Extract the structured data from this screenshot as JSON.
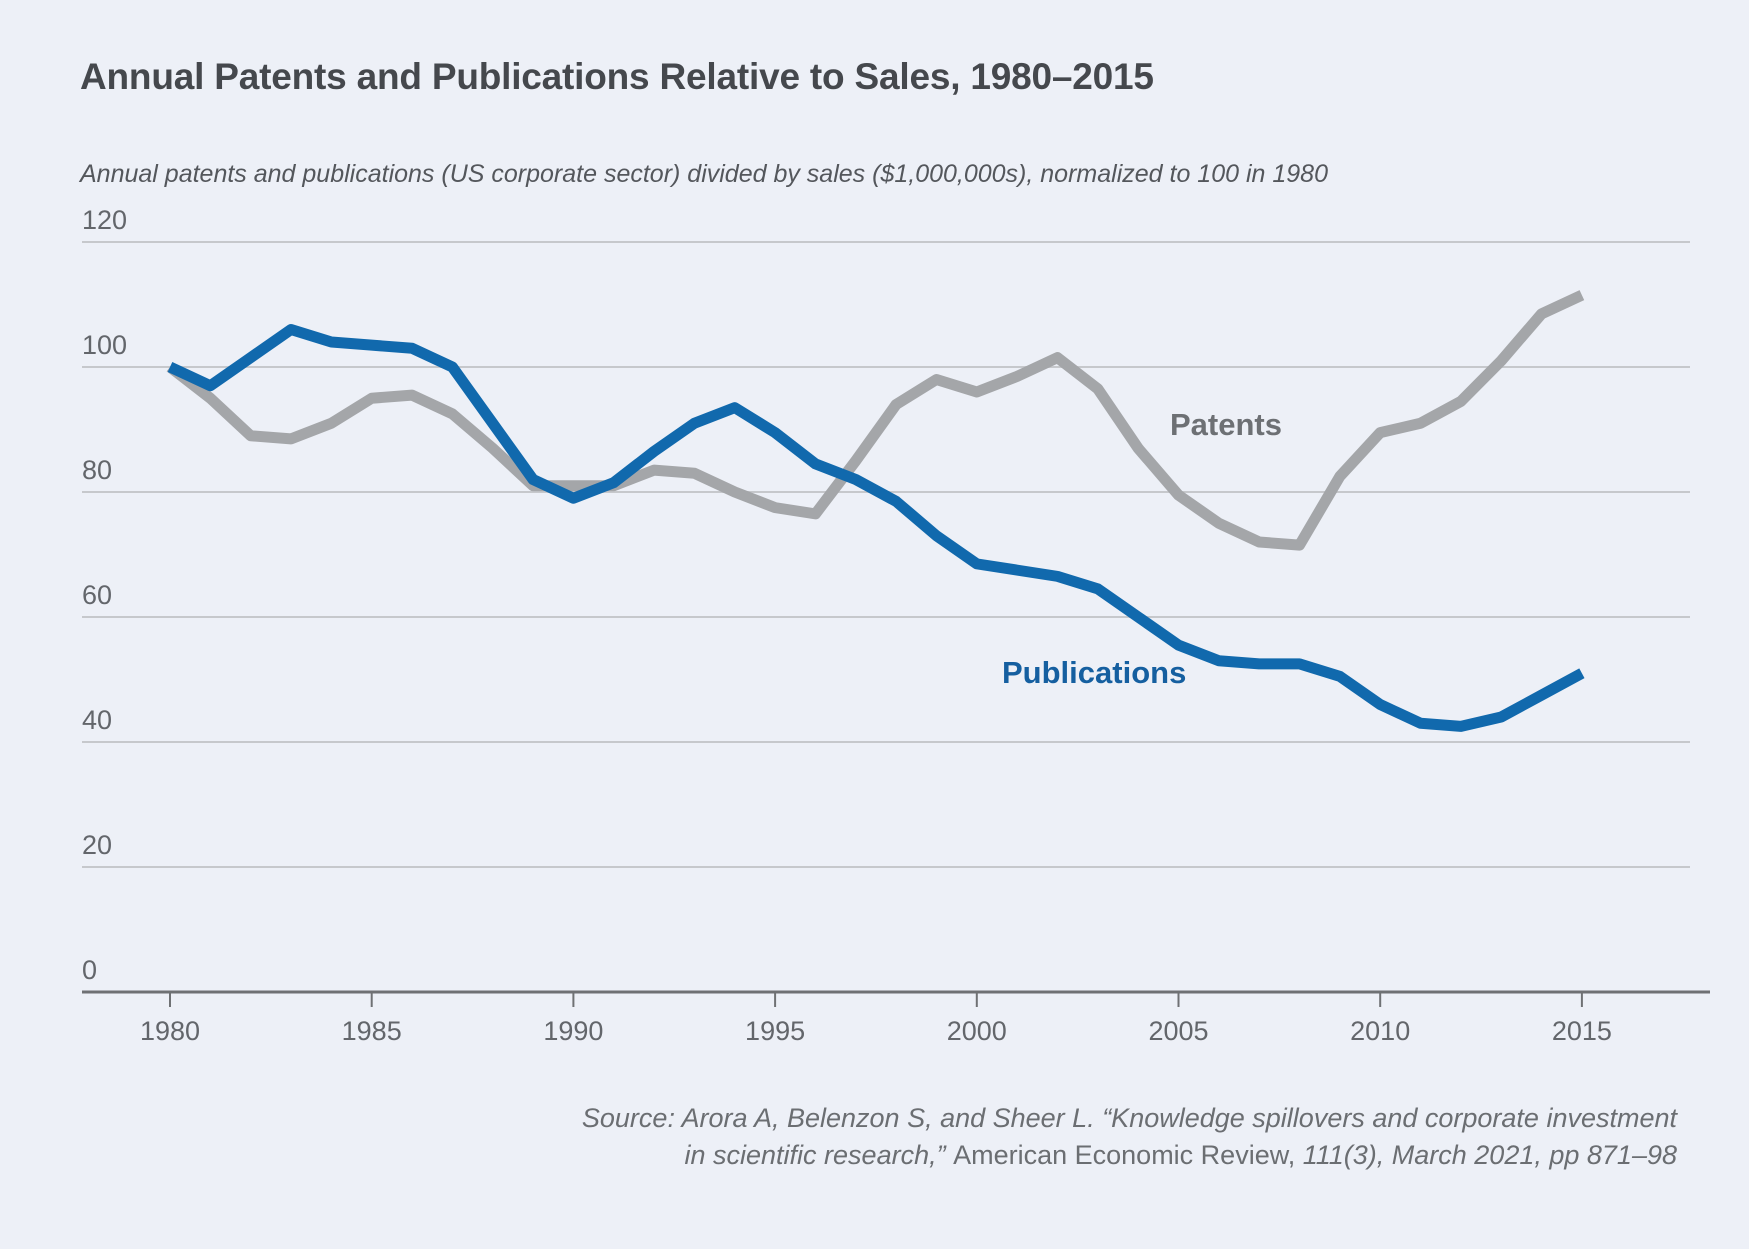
{
  "page": {
    "background": "#edf0f7"
  },
  "header": {
    "title": "Annual Patents and Publications Relative to Sales, 1980–2015",
    "subtitle": "Annual patents and publications (US corporate sector) divided by sales ($1,000,000s), normalized to 100 in 1980"
  },
  "chart_data": {
    "type": "line",
    "title": "Annual Patents and Publications Relative to Sales, 1980–2015",
    "x": [
      1980,
      1981,
      1982,
      1983,
      1984,
      1985,
      1986,
      1987,
      1988,
      1989,
      1990,
      1991,
      1992,
      1993,
      1994,
      1995,
      1996,
      1997,
      1998,
      1999,
      2000,
      2001,
      2002,
      2003,
      2004,
      2005,
      2006,
      2007,
      2008,
      2009,
      2010,
      2011,
      2012,
      2013,
      2014,
      2015
    ],
    "x_tick_labels": [
      "1980",
      "1985",
      "1990",
      "1995",
      "2000",
      "2005",
      "2010",
      "2015"
    ],
    "y_ticks": [
      0,
      20,
      40,
      60,
      80,
      100,
      120
    ],
    "ylim": [
      0,
      120
    ],
    "grid": "horizontal",
    "legend_position": "inline-labels",
    "series": [
      {
        "name": "Patents",
        "color": "#a4a6a9",
        "label_color": "#6d7074",
        "values": [
          100,
          95,
          89,
          88.5,
          91,
          95,
          95.5,
          92.5,
          87,
          81,
          81,
          81,
          83.5,
          83,
          80,
          77.5,
          76.5,
          85,
          94,
          98,
          96,
          98.5,
          101.5,
          96.5,
          87,
          79.5,
          75,
          72,
          71.5,
          82.5,
          89.5,
          91,
          94.5,
          101,
          108.5,
          111.5
        ]
      },
      {
        "name": "Publications",
        "color": "#1169ad",
        "label_color": "#155fa0",
        "values": [
          100,
          97,
          101.5,
          106,
          104,
          103.5,
          103,
          100,
          91,
          82,
          79,
          81.5,
          86.5,
          91,
          93.5,
          89.5,
          84.5,
          82,
          78.5,
          73,
          68.5,
          67.5,
          66.5,
          64.5,
          60,
          55.5,
          53,
          52.5,
          52.5,
          50.5,
          46,
          43,
          42.5,
          44,
          47.5,
          51
        ]
      }
    ]
  },
  "source": {
    "line1": "Source: Arora A,  Belenzon S, and Sheer L. “Knowledge spillovers and corporate investment",
    "line2_italic_pre": "in scientific research,” ",
    "line2_roman": "American Economic Review,",
    "line2_italic_post": " 111(3), March 2021, pp 871–98"
  }
}
